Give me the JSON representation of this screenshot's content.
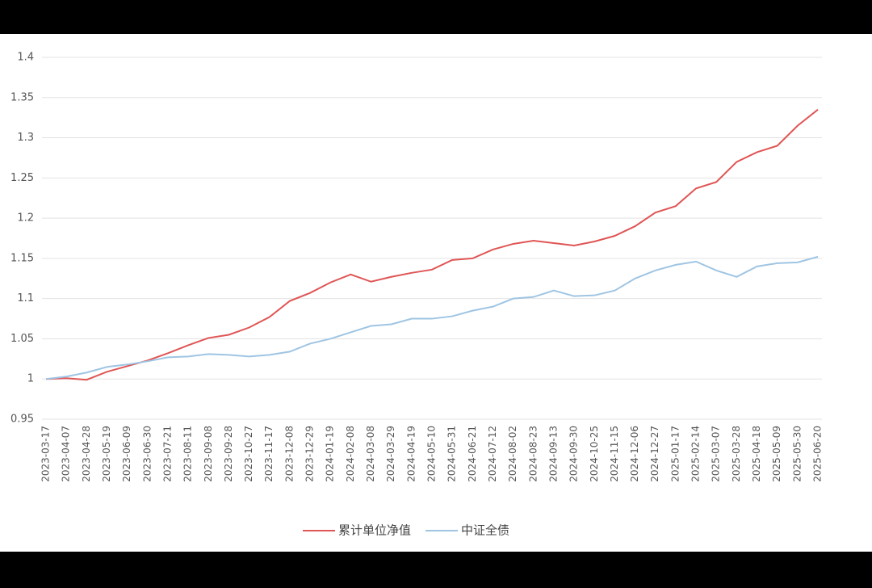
{
  "chart_data": {
    "type": "line",
    "categories": [
      "2023-03-17",
      "2023-04-07",
      "2023-04-28",
      "2023-05-19",
      "2023-06-09",
      "2023-06-30",
      "2023-07-21",
      "2023-08-11",
      "2023-09-08",
      "2023-09-28",
      "2023-10-27",
      "2023-11-17",
      "2023-12-08",
      "2023-12-29",
      "2024-01-19",
      "2024-02-08",
      "2024-03-08",
      "2024-03-29",
      "2024-04-19",
      "2024-05-10",
      "2024-05-31",
      "2024-06-21",
      "2024-07-12",
      "2024-08-02",
      "2024-08-23",
      "2024-09-13",
      "2024-09-30",
      "2024-10-25",
      "2024-11-15",
      "2024-12-06",
      "2024-12-27",
      "2025-01-17",
      "2025-02-14",
      "2025-03-07",
      "2025-03-28",
      "2025-04-18",
      "2025-05-09",
      "2025-05-30",
      "2025-06-20"
    ],
    "series": [
      {
        "name": "累计单位净值",
        "color": "#e05555",
        "values": [
          1.0,
          1.001,
          0.999,
          1.009,
          1.016,
          1.023,
          1.032,
          1.042,
          1.051,
          1.055,
          1.064,
          1.077,
          1.097,
          1.107,
          1.12,
          1.13,
          1.121,
          1.127,
          1.132,
          1.136,
          1.148,
          1.15,
          1.161,
          1.168,
          1.172,
          1.169,
          1.166,
          1.171,
          1.178,
          1.19,
          1.207,
          1.215,
          1.237,
          1.245,
          1.27,
          1.282,
          1.29,
          1.315,
          1.335
        ]
      },
      {
        "name": "中证全债",
        "color": "#9fc5e3",
        "values": [
          1.0,
          1.003,
          1.008,
          1.015,
          1.018,
          1.022,
          1.027,
          1.028,
          1.031,
          1.03,
          1.028,
          1.03,
          1.034,
          1.044,
          1.05,
          1.058,
          1.066,
          1.068,
          1.075,
          1.075,
          1.078,
          1.085,
          1.09,
          1.1,
          1.102,
          1.11,
          1.103,
          1.104,
          1.11,
          1.125,
          1.135,
          1.142,
          1.146,
          1.135,
          1.127,
          1.14,
          1.144,
          1.145,
          1.152
        ]
      }
    ],
    "ylim": [
      0.95,
      1.4
    ],
    "yticks": [
      0.95,
      1,
      1.05,
      1.1,
      1.15,
      1.2,
      1.25,
      1.3,
      1.35,
      1.4
    ],
    "grid": true,
    "legend": "bottom"
  }
}
